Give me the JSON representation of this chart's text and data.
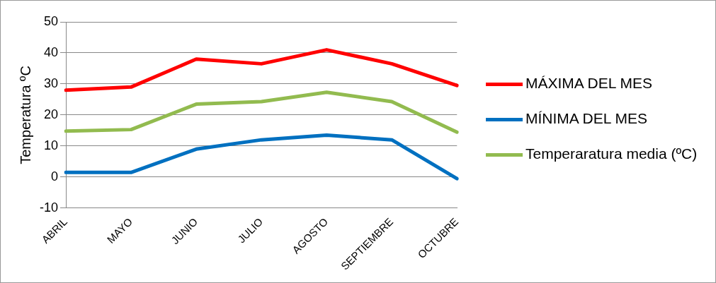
{
  "chart_data": {
    "type": "line",
    "ylabel": "Temperatura ºC",
    "categories": [
      "ABRIL",
      "MAYO",
      "JUNIO",
      "JULIO",
      "AGOSTO",
      "SEPTIEMBRE",
      "OCTUBRE"
    ],
    "series": [
      {
        "name": "MÁXIMA DEL MES",
        "color": "#ff0000",
        "values": [
          28,
          29,
          38,
          36.5,
          41,
          36.5,
          29.5
        ]
      },
      {
        "name": "MÍNIMA DEL MES",
        "color": "#0070c0",
        "values": [
          1.5,
          1.5,
          9,
          12,
          13.5,
          12,
          -0.5
        ]
      },
      {
        "name": "Temperaratura media (ºC)",
        "color": "#92bb4f",
        "values": [
          14.8,
          15.3,
          23.5,
          24.3,
          27.3,
          24.3,
          14.5
        ]
      }
    ],
    "ylim": [
      -10,
      50
    ],
    "yticks": [
      -10,
      0,
      10,
      20,
      30,
      40,
      50
    ],
    "grid": "y",
    "legend": "right",
    "marker": "none",
    "line_style": "solid"
  }
}
